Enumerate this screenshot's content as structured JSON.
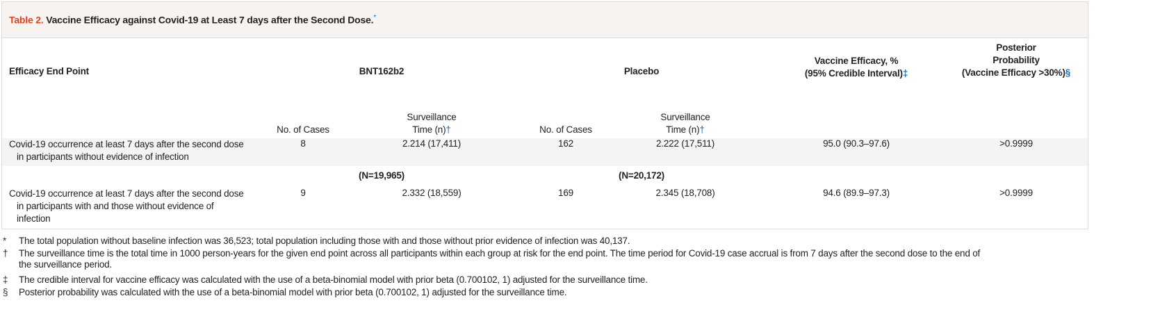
{
  "title": {
    "label": "Table 2.",
    "text": "Vaccine Efficacy against Covid-19 at Least 7 days after the Second Dose.",
    "mark": "*"
  },
  "colors": {
    "label": "#e8401c",
    "footnote_marker": "#1a6fb0",
    "title_bg": "#f6f3f1",
    "row_bg": "#f4f4f4"
  },
  "header": {
    "endpoint": "Efficacy End Point",
    "group1": "BNT162b2",
    "group2": "Placebo",
    "ve_line1": "Vaccine Efficacy, %",
    "ve_line2": "(95% Credible Interval)",
    "ve_mark": "‡",
    "pp_line1": "Posterior",
    "pp_line2": "Probability",
    "pp_line3": "(Vaccine Efficacy >30%)",
    "pp_mark": "§",
    "cases": "No. of Cases",
    "surv_line1": "Surveillance",
    "surv_line2": "Time (n)",
    "surv_mark": "†"
  },
  "rows": [
    {
      "endpoint_line1": "Covid-19 occurrence at least 7 days after the second dose",
      "endpoint_line2": "in participants without evidence of infection",
      "endpoint_line3": "",
      "bnt_cases": "8",
      "bnt_surv": "2.214 (17,411)",
      "pl_cases": "162",
      "pl_surv": "2.222 (17,511)",
      "ve": "95.0 (90.3–97.6)",
      "pp": ">0.9999"
    },
    {
      "endpoint_line1": "Covid-19 occurrence at least 7 days after the second dose",
      "endpoint_line2": "in participants with and those without evidence of",
      "endpoint_line3": "infection",
      "bnt_cases": "9",
      "bnt_surv": "2.332 (18,559)",
      "pl_cases": "169",
      "pl_surv": "2.345 (18,708)",
      "ve": "94.6 (89.9–97.3)",
      "pp": ">0.9999"
    }
  ],
  "n_row": {
    "bnt": "(N=19,965)",
    "placebo": "(N=20,172)"
  },
  "footnotes": [
    {
      "symbol": "*",
      "text": "The total population without baseline infection was 36,523; total population including those with and those without prior evidence of infection was 40,137."
    },
    {
      "symbol": "†",
      "text": "The surveillance time is the total time in 1000 person-years for the given end point across all participants within each group at risk for the end point. The time period for Covid-19 case accrual is from 7 days after the second dose to the end of the surveillance period."
    },
    {
      "symbol": "‡",
      "text": "The credible interval for vaccine efficacy was calculated with the use of a beta-binomial model with prior beta (0.700102, 1) adjusted for the surveillance time."
    },
    {
      "symbol": "§",
      "text": "Posterior probability was calculated with the use of a beta-binomial model with prior beta (0.700102, 1) adjusted for the surveillance time."
    }
  ]
}
